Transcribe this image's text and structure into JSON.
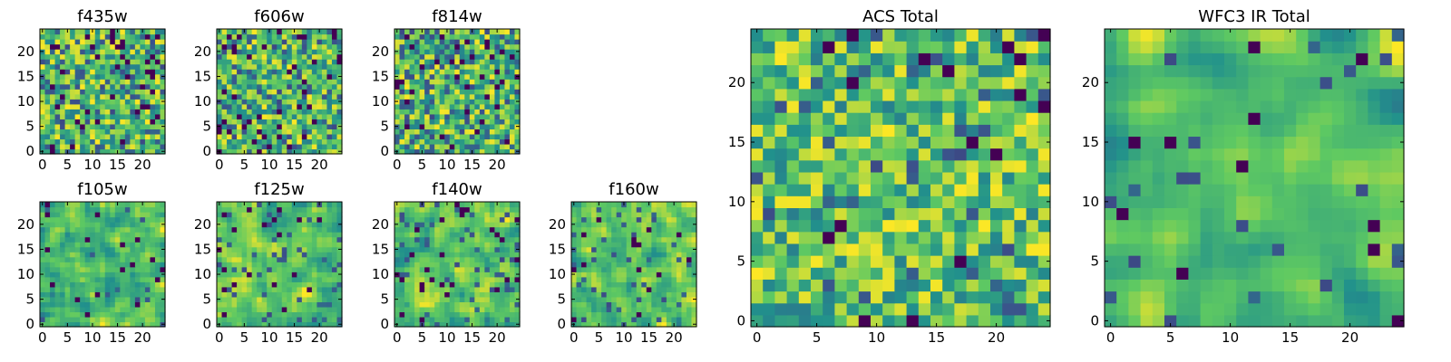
{
  "figure": {
    "colormap": [
      "#440154",
      "#3b528b",
      "#21918c",
      "#5ec962",
      "#fde725"
    ]
  },
  "chart_data": [
    {
      "type": "heatmap",
      "title": "f435w",
      "grid_size": 25,
      "xticks": [
        "0",
        "5",
        "10",
        "15",
        "20"
      ],
      "yticks": [
        "0",
        "5",
        "10",
        "15",
        "20"
      ],
      "xlim": [
        -0.5,
        24.5
      ],
      "ylim": [
        -0.5,
        24.5
      ],
      "seed": 11,
      "smooth": 0,
      "dark_prob": 0.07,
      "grid": false
    },
    {
      "type": "heatmap",
      "title": "f606w",
      "grid_size": 25,
      "xticks": [
        "0",
        "5",
        "10",
        "15",
        "20"
      ],
      "yticks": [
        "0",
        "5",
        "10",
        "15",
        "20"
      ],
      "xlim": [
        -0.5,
        24.5
      ],
      "ylim": [
        -0.5,
        24.5
      ],
      "seed": 23,
      "smooth": 0,
      "dark_prob": 0.06,
      "grid": false
    },
    {
      "type": "heatmap",
      "title": "f814w",
      "grid_size": 25,
      "xticks": [
        "0",
        "5",
        "10",
        "15",
        "20"
      ],
      "yticks": [
        "0",
        "5",
        "10",
        "15",
        "20"
      ],
      "xlim": [
        -0.5,
        24.5
      ],
      "ylim": [
        -0.5,
        24.5
      ],
      "seed": 37,
      "smooth": 0,
      "dark_prob": 0.07,
      "grid": false
    },
    {
      "type": "heatmap",
      "title": "f105w",
      "grid_size": 25,
      "xticks": [
        "0",
        "5",
        "10",
        "15",
        "20"
      ],
      "yticks": [
        "0",
        "5",
        "10",
        "15",
        "20"
      ],
      "xlim": [
        -0.5,
        24.5
      ],
      "ylim": [
        -0.5,
        24.5
      ],
      "seed": 41,
      "smooth": 1,
      "dark_prob": 0.02,
      "grid": false
    },
    {
      "type": "heatmap",
      "title": "f125w",
      "grid_size": 25,
      "xticks": [
        "0",
        "5",
        "10",
        "15",
        "20"
      ],
      "yticks": [
        "0",
        "5",
        "10",
        "15",
        "20"
      ],
      "xlim": [
        -0.5,
        24.5
      ],
      "ylim": [
        -0.5,
        24.5
      ],
      "seed": 53,
      "smooth": 1,
      "dark_prob": 0.04,
      "grid": false
    },
    {
      "type": "heatmap",
      "title": "f140w",
      "grid_size": 25,
      "xticks": [
        "0",
        "5",
        "10",
        "15",
        "20"
      ],
      "yticks": [
        "0",
        "5",
        "10",
        "15",
        "20"
      ],
      "xlim": [
        -0.5,
        24.5
      ],
      "ylim": [
        -0.5,
        24.5
      ],
      "seed": 67,
      "smooth": 1,
      "dark_prob": 0.03,
      "grid": false
    },
    {
      "type": "heatmap",
      "title": "f160w",
      "grid_size": 25,
      "xticks": [
        "0",
        "5",
        "10",
        "15",
        "20"
      ],
      "yticks": [
        "0",
        "5",
        "10",
        "15",
        "20"
      ],
      "xlim": [
        -0.5,
        24.5
      ],
      "ylim": [
        -0.5,
        24.5
      ],
      "seed": 79,
      "smooth": 1,
      "dark_prob": 0.03,
      "grid": false
    },
    {
      "type": "heatmap",
      "title": "ACS Total",
      "grid_size": 25,
      "xticks": [
        "0",
        "5",
        "10",
        "15",
        "20"
      ],
      "yticks": [
        "0",
        "5",
        "10",
        "15",
        "20"
      ],
      "xlim": [
        -0.5,
        24.5
      ],
      "ylim": [
        -0.5,
        24.5
      ],
      "seed": 97,
      "smooth": 0,
      "dark_prob": 0.03,
      "grid": false
    },
    {
      "type": "heatmap",
      "title": "WFC3 IR Total",
      "grid_size": 25,
      "xticks": [
        "0",
        "5",
        "10",
        "15",
        "20"
      ],
      "yticks": [
        "0",
        "5",
        "10",
        "15",
        "20"
      ],
      "xlim": [
        -0.5,
        24.5
      ],
      "ylim": [
        -0.5,
        24.5
      ],
      "seed": 113,
      "smooth": 2,
      "dark_prob": 0.02,
      "grid": false
    }
  ]
}
